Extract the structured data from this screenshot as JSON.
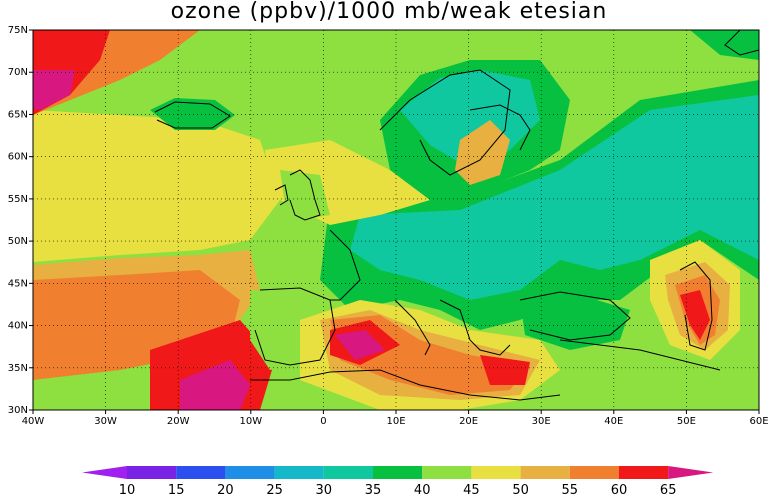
{
  "title": "ozone (ppbv)/1000 mb/weak etesian",
  "map": {
    "lon_ticks": [
      "40W",
      "30W",
      "20W",
      "10W",
      "0",
      "10E",
      "20E",
      "30E",
      "40E",
      "50E",
      "60E"
    ],
    "lat_ticks": [
      "75N",
      "70N",
      "65N",
      "60N",
      "55N",
      "50N",
      "45N",
      "40N",
      "35N",
      "30N"
    ]
  },
  "colorbar": {
    "levels": [
      "10",
      "15",
      "20",
      "25",
      "30",
      "35",
      "40",
      "45",
      "50",
      "55",
      "60",
      "65"
    ],
    "colors": [
      "#a020f0",
      "#7a22e6",
      "#2c4ff0",
      "#1f8ee6",
      "#15b8c8",
      "#10c8a0",
      "#08c040",
      "#8ee040",
      "#e8e040",
      "#e8b040",
      "#f08030",
      "#f01818",
      "#d81880"
    ]
  }
}
